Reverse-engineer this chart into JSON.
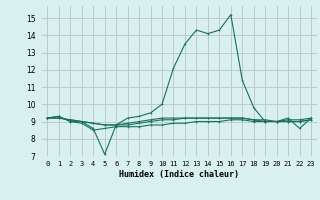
{
  "xlabel": "Humidex (Indice chaleur)",
  "background_color": "#d8f0ee",
  "grid_color": "#c0c8d0",
  "line_color": "#1a7060",
  "xlim": [
    -0.5,
    23.5
  ],
  "ylim": [
    7,
    15.7
  ],
  "yticks": [
    7,
    8,
    9,
    10,
    11,
    12,
    13,
    14,
    15
  ],
  "xtick_labels": [
    "0",
    "1",
    "2",
    "3",
    "4",
    "5",
    "6",
    "7",
    "8",
    "9",
    "10",
    "11",
    "12",
    "13",
    "14",
    "15",
    "16",
    "17",
    "18",
    "19",
    "20",
    "21",
    "22",
    "23"
  ],
  "series": [
    [
      9.2,
      9.3,
      9.0,
      9.0,
      8.6,
      7.1,
      8.8,
      9.2,
      9.3,
      9.5,
      10.0,
      12.1,
      13.5,
      14.3,
      14.1,
      14.3,
      15.2,
      11.4,
      9.8,
      9.0,
      9.0,
      9.2,
      8.6,
      9.2
    ],
    [
      9.2,
      9.3,
      9.0,
      8.9,
      8.5,
      8.6,
      8.7,
      8.7,
      8.7,
      8.8,
      8.8,
      8.9,
      8.9,
      9.0,
      9.0,
      9.0,
      9.1,
      9.1,
      9.0,
      9.0,
      9.0,
      9.0,
      9.0,
      9.1
    ],
    [
      9.2,
      9.2,
      9.1,
      9.0,
      8.9,
      8.8,
      8.8,
      8.9,
      9.0,
      9.1,
      9.2,
      9.2,
      9.2,
      9.2,
      9.2,
      9.2,
      9.2,
      9.2,
      9.1,
      9.0,
      9.0,
      9.1,
      9.1,
      9.2
    ],
    [
      9.2,
      9.2,
      9.1,
      9.0,
      8.9,
      8.8,
      8.8,
      8.8,
      8.9,
      9.0,
      9.1,
      9.1,
      9.2,
      9.2,
      9.2,
      9.2,
      9.2,
      9.2,
      9.1,
      9.1,
      9.0,
      9.0,
      9.0,
      9.1
    ]
  ]
}
